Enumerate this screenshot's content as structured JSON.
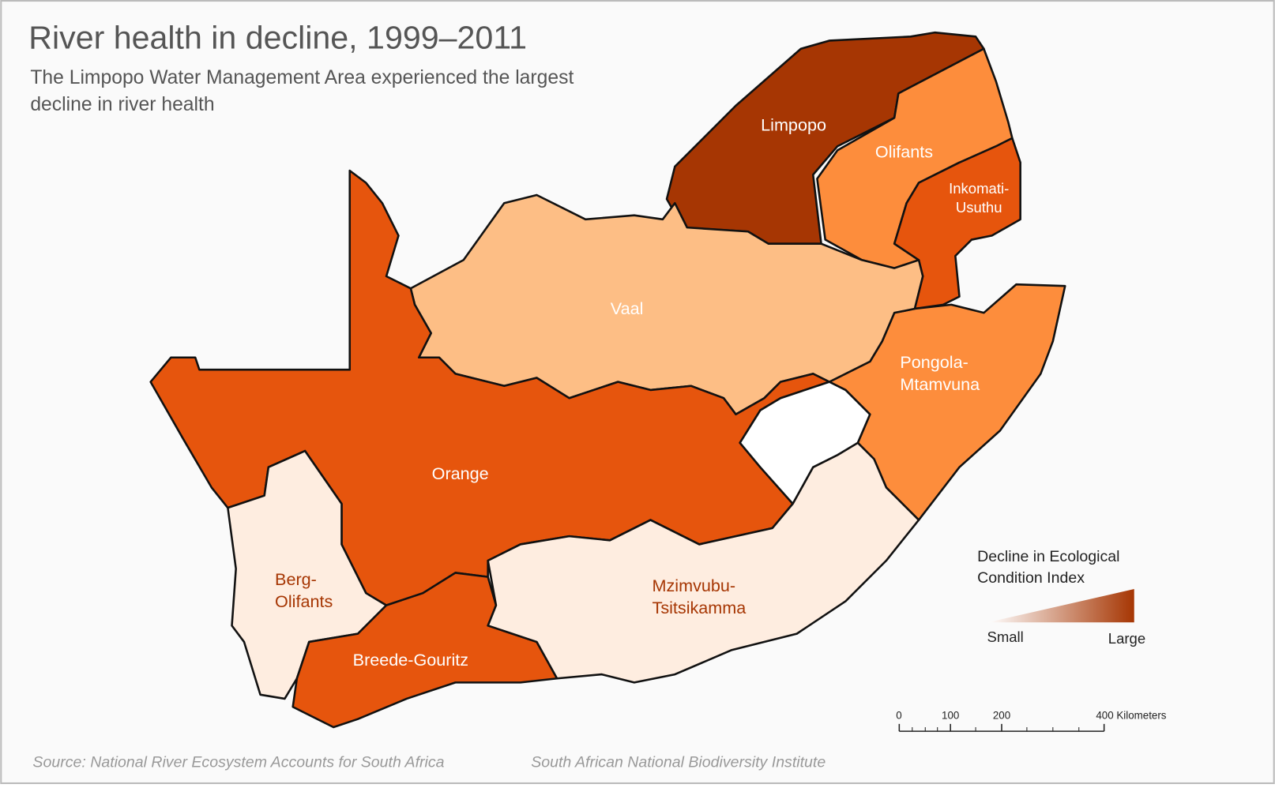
{
  "title": "River health in decline, 1999–2011",
  "subtitle": [
    "The Limpopo Water Management Area experienced the largest",
    "decline in river health"
  ],
  "regions": [
    {
      "label": [
        "Limpopo"
      ],
      "color": "#a63603",
      "label_color": "#ffffff"
    },
    {
      "label": [
        "Olifants"
      ],
      "color": "#fd8d3c",
      "label_color": "#ffffff"
    },
    {
      "label": [
        "Inkomati-",
        "Usuthu"
      ],
      "color": "#e6550d",
      "label_color": "#ffffff"
    },
    {
      "label": [
        "Pongola-",
        "Mtamvuna"
      ],
      "color": "#fd8d3c",
      "label_color": "#ffffff"
    },
    {
      "label": [
        "Vaal"
      ],
      "color": "#fdbe85",
      "label_color": "#ffffff"
    },
    {
      "label": [
        "Orange"
      ],
      "color": "#e6550d",
      "label_color": "#ffffff"
    },
    {
      "label": [
        "Berg-",
        "Olifants"
      ],
      "color": "#feede0",
      "label_color": "#a63603"
    },
    {
      "label": [
        "Breede-Gouritz"
      ],
      "color": "#e6550d",
      "label_color": "#ffffff"
    },
    {
      "label": [
        "Mzimvubu-",
        "Tsitsikamma"
      ],
      "color": "#feede0",
      "label_color": "#a63603"
    }
  ],
  "legend": {
    "title": [
      "Decline in Ecological",
      "Condition Index"
    ],
    "low": "Small",
    "high": "Large",
    "low_color": "#ffffff",
    "high_color": "#a63603"
  },
  "scale_bar": {
    "ticks": [
      0,
      100,
      200,
      {
        "value": 400,
        "label": "400 Kilometers"
      }
    ]
  },
  "source": "Source: National River Ecosystem Accounts for South Africa",
  "credit": "South African National Biodiversity Institute"
}
